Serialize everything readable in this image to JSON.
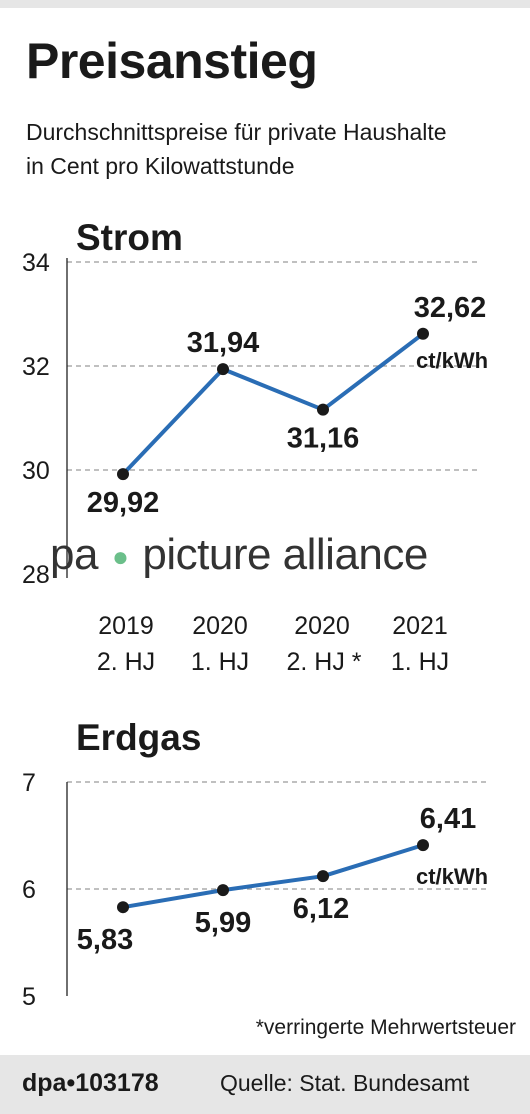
{
  "title": "Preisanstieg",
  "subtitle": [
    "Durchschnittspreise für private Haushalte",
    "in Cent pro Kilowattstunde"
  ],
  "x_labels": [
    {
      "line1": "2019",
      "line2": "2. HJ"
    },
    {
      "line1": "2020",
      "line2": "1. HJ"
    },
    {
      "line1": "2020",
      "line2": "2. HJ *"
    },
    {
      "line1": "2021",
      "line2": "1. HJ"
    }
  ],
  "chart_data": [
    {
      "type": "line",
      "title": "Strom",
      "categories": [
        "2019 2. HJ",
        "2020 1. HJ",
        "2020 2. HJ *",
        "2021 1. HJ"
      ],
      "values": [
        29.92,
        31.94,
        31.16,
        32.62
      ],
      "value_labels": [
        "29,92",
        "31,94",
        "31,16",
        "32,62"
      ],
      "unit_label": "ct/kWh",
      "yticks": [
        28,
        30,
        32,
        34
      ],
      "ylim": [
        28,
        34
      ],
      "line_color": "#2a6db5",
      "grid": true
    },
    {
      "type": "line",
      "title": "Erdgas",
      "categories": [
        "2019 2. HJ",
        "2020 1. HJ",
        "2020 2. HJ *",
        "2021 1. HJ"
      ],
      "values": [
        5.83,
        5.99,
        6.12,
        6.41
      ],
      "value_labels": [
        "5,83",
        "5,99",
        "6,12",
        "6,41"
      ],
      "unit_label": "ct/kWh",
      "yticks": [
        5,
        6,
        7
      ],
      "ylim": [
        5,
        7
      ],
      "line_color": "#2a6db5",
      "grid": true
    }
  ],
  "watermark": {
    "left": "pa",
    "right": "picture alliance"
  },
  "footnote": "*verringerte Mehrwertsteuer",
  "footer": {
    "brand": "dpa•103178",
    "source": "Quelle: Stat. Bundesamt"
  }
}
